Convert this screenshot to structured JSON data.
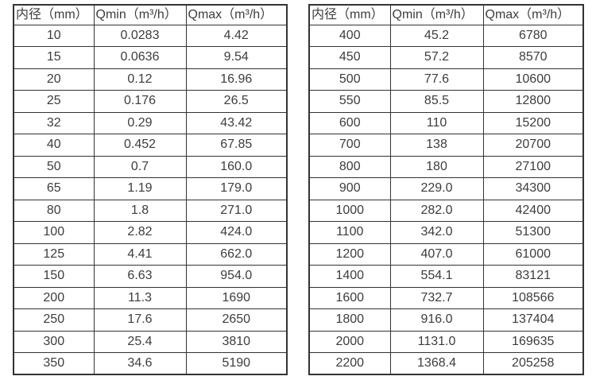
{
  "colors": {
    "border": "#333333",
    "text": "#3d3d3d",
    "background": "#ffffff"
  },
  "tables": [
    {
      "name": "small-diameter-flow-table",
      "headers": [
        "内径（mm）",
        "Qmin（m³/h）",
        "Qmax（m³/h）"
      ],
      "rows": [
        [
          "10",
          "0.0283",
          "4.42"
        ],
        [
          "15",
          "0.0636",
          "9.54"
        ],
        [
          "20",
          "0.12",
          "16.96"
        ],
        [
          "25",
          "0.176",
          "26.5"
        ],
        [
          "32",
          "0.29",
          "43.42"
        ],
        [
          "40",
          "0.452",
          "67.85"
        ],
        [
          "50",
          "0.7",
          "160.0"
        ],
        [
          "65",
          "1.19",
          "179.0"
        ],
        [
          "80",
          "1.8",
          "271.0"
        ],
        [
          "100",
          "2.82",
          "424.0"
        ],
        [
          "125",
          "4.41",
          "662.0"
        ],
        [
          "150",
          "6.63",
          "954.0"
        ],
        [
          "200",
          "11.3",
          "1690"
        ],
        [
          "250",
          "17.6",
          "2650"
        ],
        [
          "300",
          "25.4",
          "3810"
        ],
        [
          "350",
          "34.6",
          "5190"
        ]
      ]
    },
    {
      "name": "large-diameter-flow-table",
      "headers": [
        "内径（mm）",
        "Qmin（m³/h）",
        "Qmax（m³/h）"
      ],
      "rows": [
        [
          "400",
          "45.2",
          "6780"
        ],
        [
          "450",
          "57.2",
          "8570"
        ],
        [
          "500",
          "77.6",
          "10600"
        ],
        [
          "550",
          "85.5",
          "12800"
        ],
        [
          "600",
          "110",
          "15200"
        ],
        [
          "700",
          "138",
          "20700"
        ],
        [
          "800",
          "180",
          "27100"
        ],
        [
          "900",
          "229.0",
          "34300"
        ],
        [
          "1000",
          "282.0",
          "42400"
        ],
        [
          "1100",
          "342.0",
          "51300"
        ],
        [
          "1200",
          "407.0",
          "61000"
        ],
        [
          "1400",
          "554.1",
          "83121"
        ],
        [
          "1600",
          "732.7",
          "108566"
        ],
        [
          "1800",
          "916.0",
          "137404"
        ],
        [
          "2000",
          "1131.0",
          "169635"
        ],
        [
          "2200",
          "1368.4",
          "205258"
        ]
      ]
    }
  ]
}
